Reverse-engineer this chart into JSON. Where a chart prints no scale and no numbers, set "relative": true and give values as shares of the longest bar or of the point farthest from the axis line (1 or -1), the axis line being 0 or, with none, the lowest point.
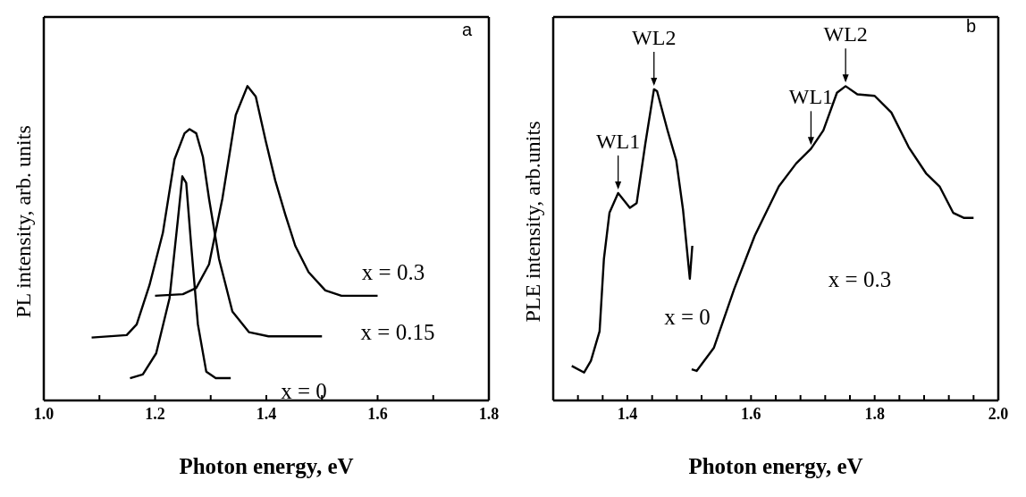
{
  "chart_data": [
    {
      "type": "line",
      "relative": true,
      "ylabel": "PL intensity, arb. units",
      "xlabel": "Photon energy, eV",
      "xlim": [
        1.0,
        1.8
      ],
      "xticks": [
        {
          "value": 1.0,
          "label": "1.0"
        },
        {
          "value": 1.1,
          "label": null
        },
        1.2,
        {
          "value": 1.3,
          "label": null
        },
        1.4,
        {
          "value": 1.5,
          "label": null
        },
        1.6,
        {
          "value": 1.7,
          "label": null
        },
        1.8
      ],
      "marker": "none",
      "line_style": "solid",
      "grid": false,
      "legend": false,
      "series": [
        {
          "color": "#000000",
          "x": [
            1.2,
            1.25,
            1.274,
            1.297,
            1.321,
            1.345,
            1.366,
            1.381,
            1.399,
            1.416,
            1.434,
            1.452,
            1.476,
            1.506,
            1.535,
            1.6
          ],
          "values": [
            0.333,
            0.338,
            0.358,
            0.433,
            0.642,
            0.908,
            1.0,
            0.967,
            0.825,
            0.7,
            0.592,
            0.492,
            0.408,
            0.35,
            0.333,
            0.333
          ]
        },
        {
          "color": "#000000",
          "x": [
            1.086,
            1.149,
            1.167,
            1.19,
            1.214,
            1.235,
            1.253,
            1.262,
            1.274,
            1.286,
            1.297,
            1.315,
            1.339,
            1.369,
            1.404,
            1.5
          ],
          "values": [
            0.2,
            0.208,
            0.242,
            0.367,
            0.533,
            0.767,
            0.85,
            0.863,
            0.85,
            0.775,
            0.642,
            0.45,
            0.283,
            0.217,
            0.204,
            0.204
          ]
        },
        {
          "color": "#000000",
          "x": [
            1.155,
            1.178,
            1.202,
            1.226,
            1.241,
            1.249,
            1.256,
            1.265,
            1.277,
            1.292,
            1.309,
            1.336
          ],
          "values": [
            0.071,
            0.083,
            0.15,
            0.325,
            0.575,
            0.713,
            0.692,
            0.492,
            0.242,
            0.092,
            0.071,
            0.071
          ]
        }
      ],
      "annotations": [
        "a",
        "x = 0.3",
        "x = 0.15",
        "x = 0"
      ]
    },
    {
      "type": "line",
      "relative": true,
      "ylabel": "PLE intensity, arb.units",
      "xlabel": "Photon energy, eV",
      "xlim": [
        1.28,
        2.0
      ],
      "xticks": [
        {
          "value": 1.32,
          "label": null
        },
        {
          "value": 1.36,
          "label": null
        },
        1.4,
        {
          "value": 1.44,
          "label": null
        },
        {
          "value": 1.48,
          "label": null
        },
        {
          "value": 1.52,
          "label": null
        },
        {
          "value": 1.56,
          "label": null
        },
        1.6,
        {
          "value": 1.64,
          "label": null
        },
        {
          "value": 1.68,
          "label": null
        },
        {
          "value": 1.72,
          "label": null
        },
        {
          "value": 1.76,
          "label": null
        },
        1.8,
        {
          "value": 1.84,
          "label": null
        },
        {
          "value": 1.88,
          "label": null
        },
        {
          "value": 1.92,
          "label": null
        },
        {
          "value": 1.96,
          "label": null
        },
        {
          "value": 2.0,
          "label": "2.0"
        }
      ],
      "marker": "none",
      "line_style": "solid",
      "grid": false,
      "legend": false,
      "series": [
        {
          "color": "#000000",
          "x": [
            1.31,
            1.33,
            1.341,
            1.355,
            1.362,
            1.371,
            1.385,
            1.404,
            1.415,
            1.429,
            1.443,
            1.448,
            1.465,
            1.479,
            1.49,
            1.501,
            1.505
          ],
          "values": [
            0.11,
            0.089,
            0.126,
            0.22,
            0.45,
            0.597,
            0.66,
            0.613,
            0.628,
            0.817,
            0.99,
            0.984,
            0.859,
            0.764,
            0.607,
            0.387,
            0.492
          ]
        },
        {
          "color": "#000000",
          "x": [
            1.504,
            1.512,
            1.54,
            1.573,
            1.606,
            1.645,
            1.673,
            1.697,
            1.717,
            1.739,
            1.753,
            1.772,
            1.8,
            1.827,
            1.855,
            1.883,
            1.905,
            1.927,
            1.944,
            1.96
          ],
          "values": [
            0.099,
            0.094,
            0.168,
            0.356,
            0.524,
            0.681,
            0.754,
            0.801,
            0.859,
            0.979,
            1.0,
            0.974,
            0.969,
            0.916,
            0.806,
            0.723,
            0.681,
            0.597,
            0.581,
            0.581
          ]
        }
      ],
      "annotations": [
        "b",
        {
          "text": "WL1",
          "x": 1.385,
          "y": 0.66
        },
        {
          "text": "WL2",
          "x": 1.443,
          "y": 0.99
        },
        {
          "text": "WL1",
          "x": 1.697,
          "y": 0.801
        },
        {
          "text": "WL2",
          "x": 1.753,
          "y": 1.0
        },
        "x = 0",
        "x = 0.3"
      ]
    }
  ]
}
